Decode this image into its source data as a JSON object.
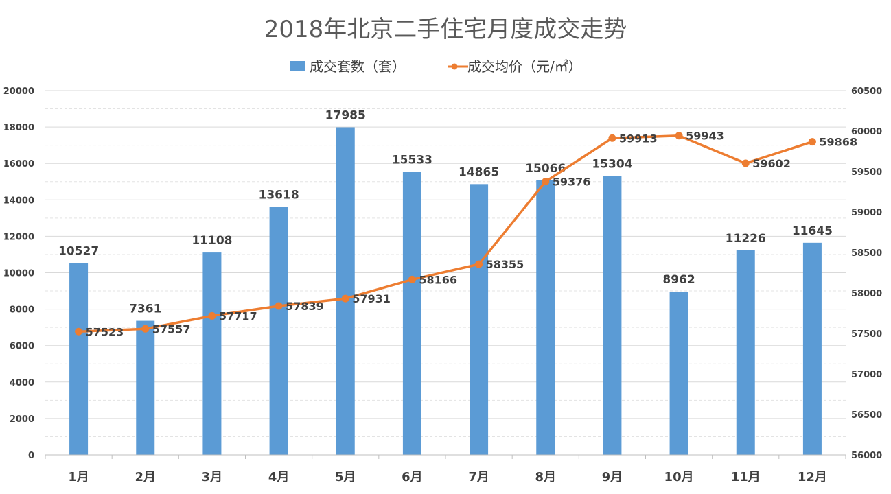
{
  "chart_data": {
    "type": "bar",
    "title": "2018年北京二手住宅月度成交走势",
    "categories": [
      "1月",
      "2月",
      "3月",
      "4月",
      "5月",
      "6月",
      "7月",
      "8月",
      "9月",
      "10月",
      "11月",
      "12月"
    ],
    "series": [
      {
        "name": "成交套数（套）",
        "type": "bar",
        "axis": "left",
        "color": "#5b9bd5",
        "values": [
          10527,
          7361,
          11108,
          13618,
          17985,
          15533,
          14865,
          15066,
          15304,
          8962,
          11226,
          11645
        ]
      },
      {
        "name": "成交均价（元/㎡）",
        "type": "line",
        "axis": "right",
        "color": "#ed7d31",
        "values": [
          57523,
          57557,
          57717,
          57839,
          57931,
          58166,
          58355,
          59376,
          59913,
          59943,
          59602,
          59868
        ]
      }
    ],
    "y_left": {
      "min": 0,
      "max": 20000,
      "step": 2000
    },
    "y_right": {
      "min": 56000,
      "max": 60500,
      "step": 500
    },
    "grid": true,
    "legend_position": "top-center"
  }
}
